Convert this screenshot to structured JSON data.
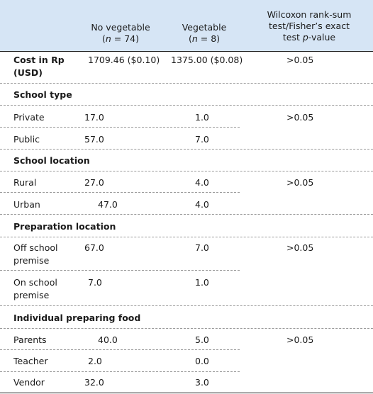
{
  "header": {
    "col_no_veg": "No vegetable",
    "col_no_veg_n_pre": "(",
    "col_no_veg_n_var": "n",
    "col_no_veg_n_post": " = 74)",
    "col_veg": "Vegetable",
    "col_veg_n_pre": "(",
    "col_veg_n_var": "n",
    "col_veg_n_post": " = 8)",
    "col_test_l1": "Wilcoxon rank-sum",
    "col_test_l2": "test/Fisher’s exact",
    "col_test_l3_pre": "test ",
    "col_test_l3_var": "p",
    "col_test_l3_post": "-value"
  },
  "rows": {
    "cost_label_l1": "Cost in Rp",
    "cost_label_l2": "(USD)",
    "cost_no_veg": "1709.46 ($0.10)",
    "cost_veg": "1375.00 ($0.08)",
    "cost_p": ">0.05",
    "school_type": "School type",
    "private": "Private",
    "private_no_veg": "17.0",
    "private_veg": "1.0",
    "school_type_p": ">0.05",
    "public": "Public",
    "public_no_veg": "57.0",
    "public_veg": "7.0",
    "school_location": "School location",
    "rural": "Rural",
    "rural_no_veg": "27.0",
    "rural_veg": "4.0",
    "school_location_p": ">0.05",
    "urban": "Urban",
    "urban_no_veg": "47.0",
    "urban_veg": "4.0",
    "prep_location": "Preparation location",
    "off_l1": "Off school",
    "off_l2": "premise",
    "off_no_veg": "67.0",
    "off_veg": "7.0",
    "prep_location_p": ">0.05",
    "on_l1": "On school",
    "on_l2": "premise",
    "on_no_veg": "7.0",
    "on_veg": "1.0",
    "individual": "Individual preparing food",
    "parents": "Parents",
    "parents_no_veg": "40.0",
    "parents_veg": "5.0",
    "individual_p": ">0.05",
    "teacher": "Teacher",
    "teacher_no_veg": "2.0",
    "teacher_veg": "0.0",
    "vendor": "Vendor",
    "vendor_no_veg": "32.0",
    "vendor_veg": "3.0"
  }
}
